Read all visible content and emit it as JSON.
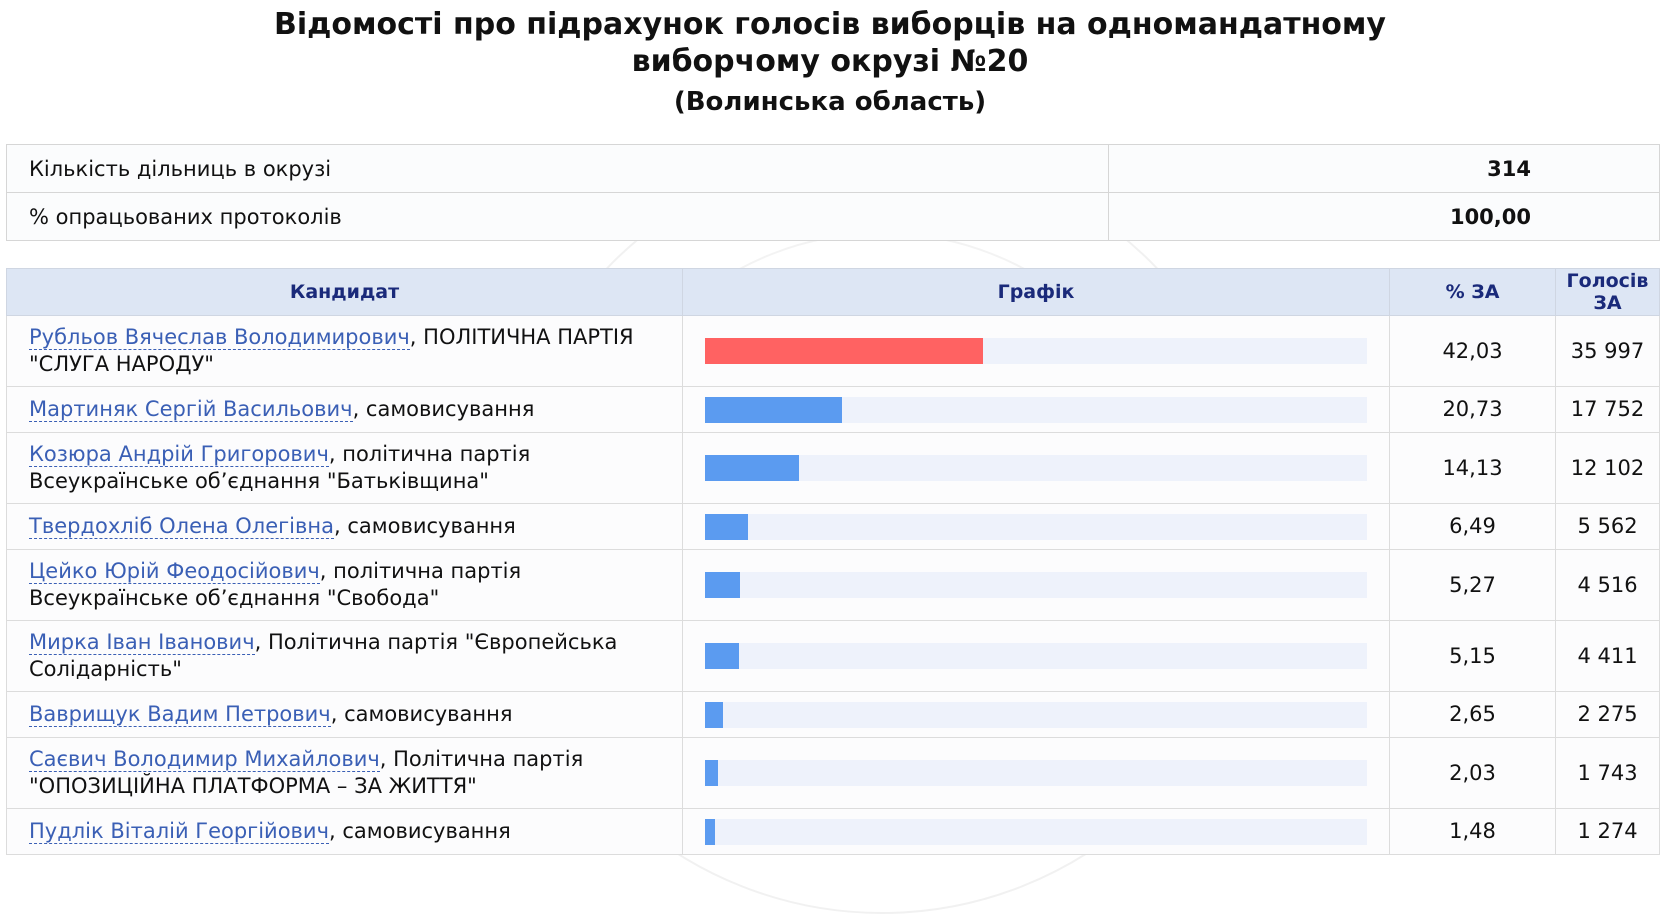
{
  "header": {
    "title_line1": "Відомості про підрахунок голосів виборців на одномандатному",
    "title_line2": "виборчому окрузі №20",
    "region": "(Волинська область)"
  },
  "stats": [
    {
      "label": "Кількість дільниць в окрузі",
      "value": "314"
    },
    {
      "label": "% опрацьованих протоколів",
      "value": "100,00"
    }
  ],
  "table_headers": {
    "candidate": "Кандидат",
    "chart": "Графік",
    "percent": "% ЗА",
    "votes": "Голосів ЗА"
  },
  "colors": {
    "winner_bar": "#ff6262",
    "other_bar": "#5b9bf0",
    "track": "#eef2fb",
    "link": "#3a5fb5"
  },
  "chart_data": {
    "type": "bar",
    "categories": [
      "Рубльов Вячеслав Володимирович",
      "Мартиняк Сергій Васильович",
      "Козюра Андрій Григорович",
      "Твердохліб Олена Олегівна",
      "Цейко Юрій Феодосійович",
      "Мирка Іван Іванович",
      "Ваврищук Вадим Петрович",
      "Саєвич Володимир Михайлович",
      "Пудлік Віталій Георгійович"
    ],
    "values": [
      42.03,
      20.73,
      14.13,
      6.49,
      5.27,
      5.15,
      2.65,
      2.03,
      1.48
    ],
    "ylim": [
      0,
      100
    ]
  },
  "candidates": [
    {
      "name": "Рубльов Вячеслав Володимирович",
      "party": ", ПОЛІТИЧНА ПАРТІЯ \"СЛУГА НАРОДУ\"",
      "percent": "42,03",
      "votes": "35 997",
      "leader": true
    },
    {
      "name": "Мартиняк Сергій Васильович",
      "party": ", самовисування",
      "percent": "20,73",
      "votes": "17 752",
      "leader": false
    },
    {
      "name": "Козюра Андрій Григорович",
      "party": ", політична партія Всеукраїнське об’єднання \"Батьківщина\"",
      "percent": "14,13",
      "votes": "12 102",
      "leader": false
    },
    {
      "name": "Твердохліб Олена Олегівна",
      "party": ", самовисування",
      "percent": "6,49",
      "votes": "5 562",
      "leader": false
    },
    {
      "name": "Цейко Юрій Феодосійович",
      "party": ", політична партія Всеукраїнське об’єднання \"Свобода\"",
      "percent": "5,27",
      "votes": "4 516",
      "leader": false
    },
    {
      "name": "Мирка Іван Іванович",
      "party": ", Політична партія \"Європейська Солідарність\"",
      "percent": "5,15",
      "votes": "4 411",
      "leader": false
    },
    {
      "name": "Ваврищук Вадим Петрович",
      "party": ", самовисування",
      "percent": "2,65",
      "votes": "2 275",
      "leader": false
    },
    {
      "name": "Саєвич Володимир Михайлович",
      "party": ", Політична партія \"ОПОЗИЦІЙНА ПЛАТФОРМА – ЗА ЖИТТЯ\"",
      "percent": "2,03",
      "votes": "1 743",
      "leader": false
    },
    {
      "name": "Пудлік Віталій Георгійович",
      "party": ", самовисування",
      "percent": "1,48",
      "votes": "1 274",
      "leader": false
    }
  ]
}
